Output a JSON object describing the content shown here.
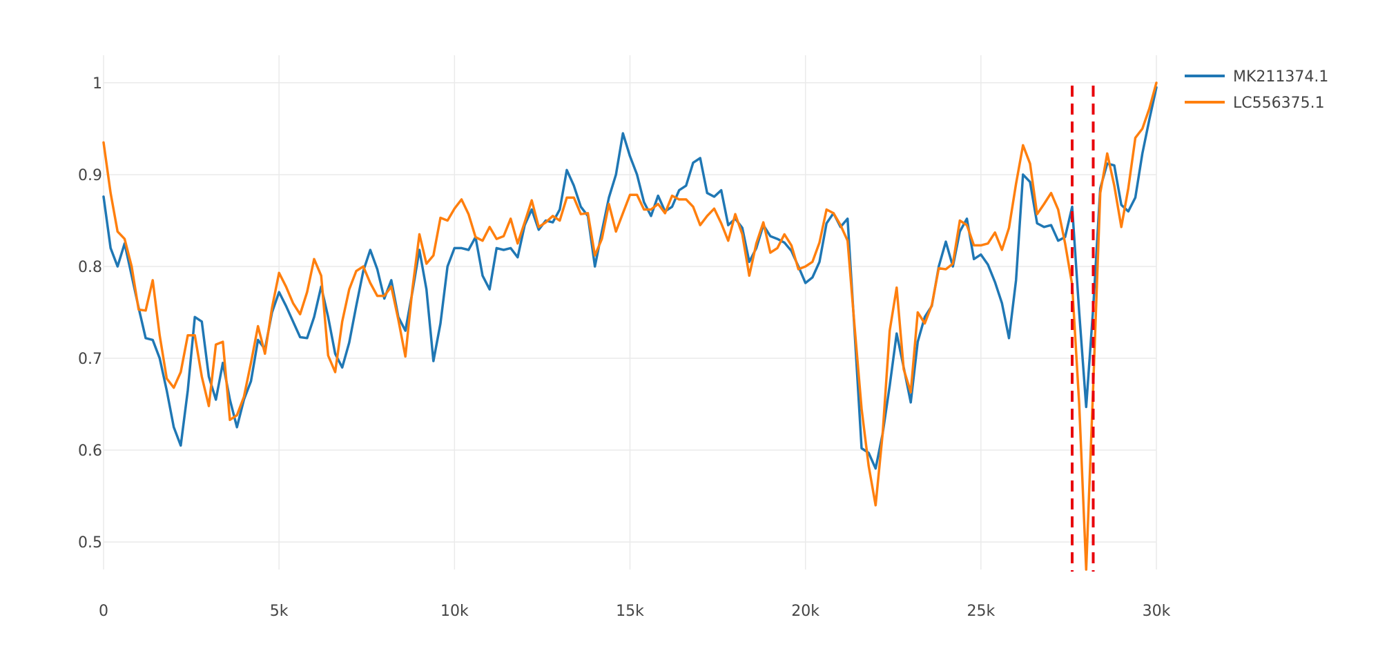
{
  "chart_data": {
    "type": "line",
    "xlim": [
      0,
      30000
    ],
    "ylim": [
      0.47,
      1.03
    ],
    "xticks": [
      0,
      5000,
      10000,
      15000,
      20000,
      25000,
      30000
    ],
    "xtick_labels": [
      "0",
      "5k",
      "10k",
      "15k",
      "20k",
      "25k",
      "30k"
    ],
    "yticks": [
      0.5,
      0.6,
      0.7,
      0.8,
      0.9,
      1
    ],
    "ytick_labels": [
      "0.5",
      "0.6",
      "0.7",
      "0.8",
      "0.9",
      "1"
    ],
    "grid": true,
    "legend_position": "top-right",
    "series": [
      {
        "name": "MK211374.1",
        "color": "#1f77b4",
        "x": [
          0,
          200,
          400,
          600,
          800,
          1000,
          1200,
          1400,
          1600,
          1800,
          2000,
          2200,
          2400,
          2600,
          2800,
          3000,
          3200,
          3400,
          3600,
          3800,
          4000,
          4200,
          4400,
          4600,
          4800,
          5000,
          5200,
          5400,
          5600,
          5800,
          6000,
          6200,
          6400,
          6600,
          6800,
          7000,
          7200,
          7400,
          7600,
          7800,
          8000,
          8200,
          8400,
          8600,
          8800,
          9000,
          9200,
          9400,
          9600,
          9800,
          10000,
          10200,
          10400,
          10600,
          10800,
          11000,
          11200,
          11400,
          11600,
          11800,
          12000,
          12200,
          12400,
          12600,
          12800,
          13000,
          13200,
          13400,
          13600,
          13800,
          14000,
          14200,
          14400,
          14600,
          14800,
          15000,
          15200,
          15400,
          15600,
          15800,
          16000,
          16200,
          16400,
          16600,
          16800,
          17000,
          17200,
          17400,
          17600,
          17800,
          18000,
          18200,
          18400,
          18600,
          18800,
          19000,
          19200,
          19400,
          19600,
          19800,
          20000,
          20200,
          20400,
          20600,
          20800,
          21000,
          21200,
          21400,
          21600,
          21800,
          22000,
          22200,
          22400,
          22600,
          22800,
          23000,
          23200,
          23400,
          23600,
          23800,
          24000,
          24200,
          24400,
          24600,
          24800,
          25000,
          25200,
          25400,
          25600,
          25800,
          26000,
          26200,
          26400,
          26600,
          26800,
          27000,
          27200,
          27400,
          27600,
          27800,
          28000,
          28200,
          28400,
          28600,
          28800,
          29000,
          29200,
          29400,
          29600,
          29800,
          30000
        ],
        "y": [
          0.876,
          0.82,
          0.8,
          0.825,
          0.79,
          0.755,
          0.722,
          0.72,
          0.7,
          0.665,
          0.625,
          0.605,
          0.665,
          0.745,
          0.74,
          0.68,
          0.655,
          0.695,
          0.655,
          0.625,
          0.655,
          0.675,
          0.72,
          0.71,
          0.75,
          0.772,
          0.757,
          0.74,
          0.723,
          0.722,
          0.745,
          0.778,
          0.745,
          0.705,
          0.69,
          0.717,
          0.757,
          0.795,
          0.818,
          0.797,
          0.765,
          0.785,
          0.745,
          0.73,
          0.772,
          0.818,
          0.775,
          0.697,
          0.738,
          0.8,
          0.82,
          0.82,
          0.818,
          0.832,
          0.79,
          0.775,
          0.82,
          0.818,
          0.82,
          0.81,
          0.845,
          0.862,
          0.84,
          0.85,
          0.848,
          0.862,
          0.905,
          0.888,
          0.865,
          0.855,
          0.8,
          0.838,
          0.875,
          0.9,
          0.945,
          0.92,
          0.9,
          0.87,
          0.855,
          0.877,
          0.86,
          0.865,
          0.883,
          0.888,
          0.913,
          0.918,
          0.88,
          0.876,
          0.883,
          0.845,
          0.852,
          0.842,
          0.805,
          0.82,
          0.845,
          0.833,
          0.83,
          0.826,
          0.817,
          0.8,
          0.782,
          0.788,
          0.805,
          0.847,
          0.858,
          0.843,
          0.852,
          0.73,
          0.602,
          0.597,
          0.58,
          0.618,
          0.67,
          0.727,
          0.69,
          0.652,
          0.718,
          0.745,
          0.757,
          0.8,
          0.827,
          0.8,
          0.838,
          0.852,
          0.808,
          0.813,
          0.802,
          0.783,
          0.76,
          0.722,
          0.785,
          0.9,
          0.892,
          0.847,
          0.843,
          0.845,
          0.828,
          0.832,
          0.865,
          0.75,
          0.647,
          0.755,
          0.885,
          0.912,
          0.91,
          0.867,
          0.86,
          0.875,
          0.923,
          0.96,
          0.995
        ]
      },
      {
        "name": "LC556375.1",
        "color": "#ff7f0e",
        "x": [
          0,
          200,
          400,
          600,
          800,
          1000,
          1200,
          1400,
          1600,
          1800,
          2000,
          2200,
          2400,
          2600,
          2800,
          3000,
          3200,
          3400,
          3600,
          3800,
          4000,
          4200,
          4400,
          4600,
          4800,
          5000,
          5200,
          5400,
          5600,
          5800,
          6000,
          6200,
          6400,
          6600,
          6800,
          7000,
          7200,
          7400,
          7600,
          7800,
          8000,
          8200,
          8400,
          8600,
          8800,
          9000,
          9200,
          9400,
          9600,
          9800,
          10000,
          10200,
          10400,
          10600,
          10800,
          11000,
          11200,
          11400,
          11600,
          11800,
          12000,
          12200,
          12400,
          12600,
          12800,
          13000,
          13200,
          13400,
          13600,
          13800,
          14000,
          14200,
          14400,
          14600,
          14800,
          15000,
          15200,
          15400,
          15600,
          15800,
          16000,
          16200,
          16400,
          16600,
          16800,
          17000,
          17200,
          17400,
          17600,
          17800,
          18000,
          18200,
          18400,
          18600,
          18800,
          19000,
          19200,
          19400,
          19600,
          19800,
          20000,
          20200,
          20400,
          20600,
          20800,
          21000,
          21200,
          21400,
          21600,
          21800,
          22000,
          22200,
          22400,
          22600,
          22800,
          23000,
          23200,
          23400,
          23600,
          23800,
          24000,
          24200,
          24400,
          24600,
          24800,
          25000,
          25200,
          25400,
          25600,
          25800,
          26000,
          26200,
          26400,
          26600,
          26800,
          27000,
          27200,
          27400,
          27600,
          27800,
          28000,
          28200,
          28400,
          28600,
          28800,
          29000,
          29200,
          29400,
          29600,
          29800,
          30000
        ],
        "y": [
          0.935,
          0.88,
          0.838,
          0.83,
          0.8,
          0.753,
          0.752,
          0.785,
          0.725,
          0.678,
          0.668,
          0.685,
          0.725,
          0.725,
          0.68,
          0.648,
          0.715,
          0.718,
          0.633,
          0.638,
          0.658,
          0.695,
          0.735,
          0.705,
          0.755,
          0.793,
          0.778,
          0.76,
          0.748,
          0.772,
          0.808,
          0.79,
          0.703,
          0.685,
          0.74,
          0.775,
          0.795,
          0.8,
          0.782,
          0.768,
          0.768,
          0.778,
          0.742,
          0.702,
          0.775,
          0.835,
          0.803,
          0.812,
          0.853,
          0.85,
          0.863,
          0.873,
          0.857,
          0.832,
          0.828,
          0.843,
          0.83,
          0.833,
          0.852,
          0.825,
          0.848,
          0.872,
          0.843,
          0.848,
          0.855,
          0.85,
          0.875,
          0.875,
          0.857,
          0.858,
          0.812,
          0.83,
          0.868,
          0.838,
          0.858,
          0.878,
          0.878,
          0.862,
          0.862,
          0.868,
          0.858,
          0.877,
          0.873,
          0.873,
          0.865,
          0.845,
          0.855,
          0.863,
          0.847,
          0.828,
          0.857,
          0.835,
          0.79,
          0.825,
          0.848,
          0.815,
          0.82,
          0.835,
          0.823,
          0.797,
          0.8,
          0.805,
          0.826,
          0.862,
          0.858,
          0.845,
          0.828,
          0.735,
          0.645,
          0.583,
          0.54,
          0.618,
          0.73,
          0.777,
          0.688,
          0.663,
          0.75,
          0.738,
          0.758,
          0.798,
          0.797,
          0.803,
          0.85,
          0.845,
          0.823,
          0.823,
          0.825,
          0.837,
          0.818,
          0.842,
          0.89,
          0.932,
          0.912,
          0.857,
          0.868,
          0.88,
          0.862,
          0.825,
          0.78,
          0.65,
          0.47,
          0.67,
          0.88,
          0.923,
          0.888,
          0.843,
          0.885,
          0.94,
          0.95,
          0.972,
          1.0
        ]
      }
    ],
    "annotations": {
      "vertical_dashed_lines": [
        {
          "x": 27600,
          "color": "#e8000b"
        },
        {
          "x": 28200,
          "color": "#e8000b"
        }
      ]
    }
  }
}
